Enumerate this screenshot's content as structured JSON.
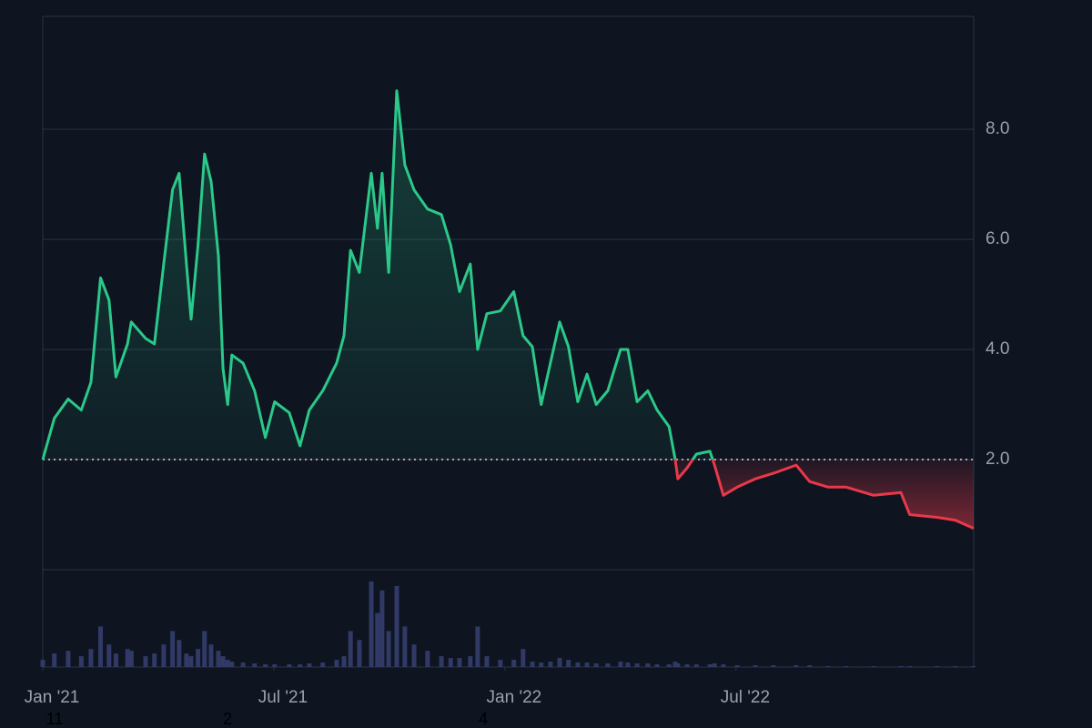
{
  "chart_data": {
    "type": "baseline-line",
    "x": [
      0,
      0.3,
      0.66,
      1.0,
      1.25,
      1.5,
      1.72,
      1.9,
      2.2,
      2.3,
      2.67,
      2.9,
      3.14,
      3.37,
      3.54,
      3.73,
      3.85,
      4.03,
      4.2,
      4.37,
      4.56,
      4.68,
      4.8,
      4.91,
      5.2,
      5.5,
      5.78,
      6.02,
      6.4,
      6.68,
      6.92,
      7.27,
      7.63,
      7.82,
      7.99,
      8.22,
      8.53,
      8.69,
      8.81,
      8.98,
      9.19,
      9.4,
      9.64,
      9.99,
      10.35,
      10.59,
      10.82,
      11.1,
      11.29,
      11.53,
      11.88,
      12.23,
      12.47,
      12.71,
      12.94,
      13.18,
      13.42,
      13.65,
      13.89,
      14.13,
      14.37,
      14.67,
      15.0,
      15.19,
      15.43,
      15.71,
      15.95,
      16.26,
      16.42,
      16.49,
      16.73,
      16.97,
      17.32,
      17.44,
      17.67,
      18.03,
      18.5,
      18.97,
      19.56,
      19.91,
      20.39,
      20.86,
      21.57,
      22.28,
      22.51,
      23.22,
      23.69,
      24.17
    ],
    "series": [
      {
        "color": "#2bc88a",
        "values": [
          2.0,
          2.75,
          3.1,
          2.9,
          3.4,
          5.3,
          4.9,
          3.5,
          4.1,
          4.5,
          4.2,
          4.1,
          5.55,
          6.9,
          7.2,
          5.55,
          4.55,
          5.9,
          7.55,
          7.05,
          5.7,
          3.65,
          3.0,
          3.9,
          3.75,
          3.25,
          2.4,
          3.05,
          2.85,
          2.25,
          2.9,
          3.25,
          3.75,
          4.25,
          5.8,
          5.4,
          7.2,
          6.2,
          7.2,
          5.4,
          8.7,
          7.35,
          6.9,
          6.55,
          6.45,
          5.9,
          5.05,
          5.55,
          4.0,
          4.65,
          4.7,
          5.05,
          4.25,
          4.05,
          3.0,
          3.75,
          4.5,
          4.05,
          3.05,
          3.55,
          3.0,
          3.25,
          4.0,
          4.0,
          3.05,
          3.25,
          2.9,
          2.6,
          2.0,
          1.65,
          1.85,
          2.1,
          2.15,
          1.9,
          1.35,
          1.5,
          1.65,
          1.75,
          1.9,
          1.6,
          1.5,
          1.5,
          1.35,
          1.4,
          1.0,
          0.95,
          0.9,
          0.75
        ]
      },
      {
        "color": "#313a66",
        "axis": "y2",
        "values": [
          8,
          15,
          18,
          12,
          20,
          45,
          25,
          15,
          20,
          18,
          12,
          15,
          25,
          40,
          30,
          15,
          12,
          20,
          40,
          25,
          18,
          12,
          8,
          6,
          5,
          4,
          3,
          3,
          3,
          3,
          4,
          5,
          8,
          12,
          40,
          30,
          95,
          60,
          85,
          40,
          90,
          45,
          25,
          18,
          12,
          10,
          10,
          12,
          45,
          12,
          8,
          8,
          20,
          6,
          5,
          6,
          10,
          8,
          5,
          5,
          4,
          4,
          6,
          5,
          4,
          4,
          3,
          3,
          6,
          4,
          3,
          3,
          3,
          4,
          3,
          2,
          2,
          2,
          2,
          2,
          1,
          1,
          1,
          1,
          1,
          1,
          1,
          1
        ]
      }
    ],
    "baseline": 2.0,
    "below_color": "#e8394a",
    "xlim": [
      0,
      24.17
    ],
    "xticks": [
      {
        "value": 0,
        "label": "Jan '21"
      },
      {
        "value": 6,
        "label": "Jul '21"
      },
      {
        "value": 12,
        "label": "Jan '22"
      },
      {
        "value": 18,
        "label": "Jul '22"
      }
    ],
    "ylim": [
      0,
      10.05
    ],
    "yticks": [
      {
        "value": 2,
        "label": "2.0"
      },
      {
        "value": 4,
        "label": "4.0"
      },
      {
        "value": 6,
        "label": "6.0"
      },
      {
        "value": 8,
        "label": "8.0"
      }
    ],
    "y2lim": [
      0,
      100
    ],
    "grid": true,
    "x_sublabels": [
      "11",
      "2",
      "4"
    ]
  }
}
